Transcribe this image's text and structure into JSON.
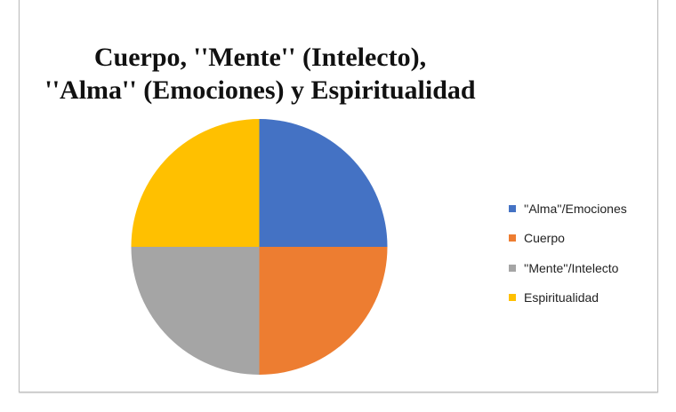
{
  "chart_data": {
    "type": "pie",
    "title": "Cuerpo, \"Mente\" (Intelecto), \"Alma\" (Emociones) y Espiritualidad",
    "title_lines": [
      "Cuerpo, ''Mente'' (Intelecto),",
      "''Alma'' (Emociones) y Espiritualidad"
    ],
    "categories": [
      "''Alma''/Emociones",
      "Cuerpo",
      "''Mente''/Intelecto",
      "Espiritualidad"
    ],
    "values": [
      25,
      25,
      25,
      25
    ],
    "colors": [
      "#4472C4",
      "#ED7D31",
      "#A5A5A5",
      "#FFC000"
    ],
    "legend_position": "right",
    "start_angle_deg": 0
  },
  "legend": {
    "items": [
      {
        "label": "''Alma''/Emociones",
        "color": "#4472C4"
      },
      {
        "label": "Cuerpo",
        "color": "#ED7D31"
      },
      {
        "label": "''Mente''/Intelecto",
        "color": "#A5A5A5"
      },
      {
        "label": "Espiritualidad",
        "color": "#FFC000"
      }
    ]
  }
}
